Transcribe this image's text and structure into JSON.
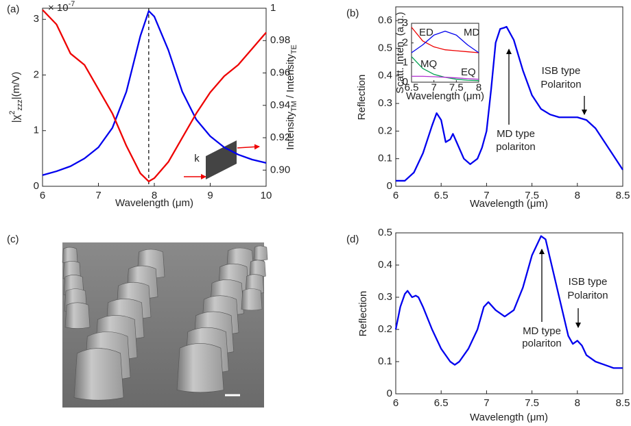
{
  "chart_data": [
    {
      "type": "line",
      "label": "(a)",
      "x_label": "Wavelength (μm)",
      "y_label": [
        "|χ",
        {
          "sup": "2"
        },
        {
          "sub": "zzz"
        },
        "|(m/V)"
      ],
      "y2_label": [
        "Intensity",
        {
          "sub": "TM"
        },
        " / Intensity",
        {
          "sub": "TE"
        }
      ],
      "y_multiplier": [
        "× 10",
        {
          "sup": "-7"
        }
      ],
      "annotations": [
        {
          "text": [
            "k"
          ]
        }
      ],
      "xlim": [
        6,
        10
      ],
      "xticks": [
        6,
        7,
        8,
        9,
        10
      ],
      "ylim": [
        0,
        3.2
      ],
      "yticks": [
        0,
        1,
        2,
        3
      ],
      "y2lim": [
        0.89,
        1.0
      ],
      "y2ticks": [
        {
          "value": 0.9,
          "label": "0.90"
        },
        0.92,
        0.94,
        0.96,
        0.98,
        1
      ],
      "x": [
        6,
        6.25,
        6.5,
        6.75,
        7,
        7.25,
        7.5,
        7.75,
        7.9,
        8,
        8.25,
        8.5,
        8.75,
        9,
        9.25,
        9.5,
        9.75,
        10
      ],
      "series": [
        {
          "color": "#0000ee",
          "values": [
            0.2,
            0.27,
            0.36,
            0.5,
            0.7,
            1.05,
            1.7,
            2.7,
            3.15,
            3.05,
            2.45,
            1.7,
            1.2,
            0.9,
            0.7,
            0.57,
            0.48,
            0.42
          ]
        },
        {
          "color": "#ee0000",
          "axis": "y2",
          "values": [
            0.999,
            0.99,
            0.972,
            0.965,
            0.95,
            0.935,
            0.915,
            0.898,
            0.893,
            0.895,
            0.905,
            0.92,
            0.935,
            0.948,
            0.958,
            0.965,
            0.975,
            0.985
          ]
        }
      ]
    },
    {
      "type": "line",
      "label": "(b)",
      "x_label": "Wavelength (μm)",
      "y_label": "Reflection",
      "annotations": [
        {
          "text": [
            "MD type",
            "polariton"
          ]
        },
        {
          "text": [
            "ISB type",
            "Polariton"
          ]
        }
      ],
      "xlim": [
        6,
        8.5
      ],
      "xticks": [
        6,
        6.5,
        7,
        7.5,
        8,
        8.5
      ],
      "ylim": [
        0,
        0.65
      ],
      "yticks": [
        0,
        0.1,
        0.2,
        0.3,
        0.4,
        0.5,
        0.6
      ],
      "x": [
        6,
        6.1,
        6.2,
        6.3,
        6.4,
        6.45,
        6.5,
        6.55,
        6.6,
        6.63,
        6.67,
        6.75,
        6.82,
        6.9,
        6.95,
        7.0,
        7.05,
        7.1,
        7.15,
        7.2,
        7.22,
        7.3,
        7.4,
        7.5,
        7.6,
        7.7,
        7.8,
        7.9,
        8.0,
        8.1,
        8.2,
        8.3,
        8.4,
        8.5
      ],
      "series": [
        {
          "color": "#0000ee",
          "values": [
            0.02,
            0.02,
            0.05,
            0.12,
            0.22,
            0.265,
            0.24,
            0.16,
            0.17,
            0.19,
            0.16,
            0.1,
            0.08,
            0.1,
            0.14,
            0.2,
            0.35,
            0.52,
            0.57,
            0.575,
            0.578,
            0.53,
            0.42,
            0.33,
            0.28,
            0.26,
            0.25,
            0.25,
            0.25,
            0.24,
            0.21,
            0.16,
            0.11,
            0.06
          ]
        }
      ],
      "inset": {
        "type": "line",
        "x_label": "Wavelength (μm)",
        "y_label": "Scatt. Inten. (a.u.)",
        "xlim": [
          6.5,
          8
        ],
        "xticks": [
          6.5,
          7,
          7.5,
          8
        ],
        "ylim": [
          0,
          3
        ],
        "yticks": [
          0,
          1,
          2,
          3
        ],
        "x": [
          6.5,
          6.75,
          7,
          7.25,
          7.5,
          7.75,
          8
        ],
        "series": [
          {
            "name": "ED",
            "color": "#ee0000",
            "values": [
              2.8,
              2.1,
              1.8,
              1.65,
              1.6,
              1.55,
              1.5
            ]
          },
          {
            "name": "MD",
            "color": "#0000ee",
            "values": [
              1.5,
              1.9,
              2.4,
              2.6,
              2.4,
              1.9,
              1.5
            ]
          },
          {
            "name": "MQ",
            "color": "#00a050",
            "values": [
              1.3,
              0.7,
              0.4,
              0.25,
              0.15,
              0.1,
              0.08
            ]
          },
          {
            "name": "EQ",
            "color": "#b030d0",
            "values": [
              0.3,
              0.3,
              0.28,
              0.25,
              0.22,
              0.18,
              0.15
            ]
          }
        ]
      }
    },
    {
      "type": "line",
      "label": "(d)",
      "x_label": "Wavelength (μm)",
      "y_label": "Reflection",
      "annotations": [
        {
          "text": [
            "MD type",
            "polariton"
          ]
        },
        {
          "text": [
            "ISB type",
            "Polariton"
          ]
        }
      ],
      "xlim": [
        6,
        8.5
      ],
      "xticks": [
        6,
        6.5,
        7,
        7.5,
        8,
        8.5
      ],
      "ylim": [
        0,
        0.5
      ],
      "yticks": [
        0,
        0.1,
        0.2,
        0.3,
        0.4,
        0.5
      ],
      "x": [
        6,
        6.05,
        6.1,
        6.13,
        6.18,
        6.22,
        6.25,
        6.3,
        6.4,
        6.5,
        6.6,
        6.65,
        6.7,
        6.8,
        6.9,
        6.97,
        7.02,
        7.1,
        7.2,
        7.3,
        7.4,
        7.5,
        7.6,
        7.65,
        7.7,
        7.8,
        7.9,
        7.95,
        8.0,
        8.05,
        8.1,
        8.2,
        8.3,
        8.4,
        8.5
      ],
      "series": [
        {
          "color": "#0000ee",
          "values": [
            0.2,
            0.27,
            0.31,
            0.32,
            0.3,
            0.305,
            0.3,
            0.27,
            0.2,
            0.14,
            0.1,
            0.09,
            0.1,
            0.14,
            0.2,
            0.27,
            0.285,
            0.26,
            0.24,
            0.26,
            0.33,
            0.43,
            0.49,
            0.48,
            0.42,
            0.3,
            0.18,
            0.155,
            0.165,
            0.15,
            0.12,
            0.1,
            0.09,
            0.08,
            0.08
          ]
        }
      ]
    }
  ],
  "image": {
    "label": "(c)"
  }
}
